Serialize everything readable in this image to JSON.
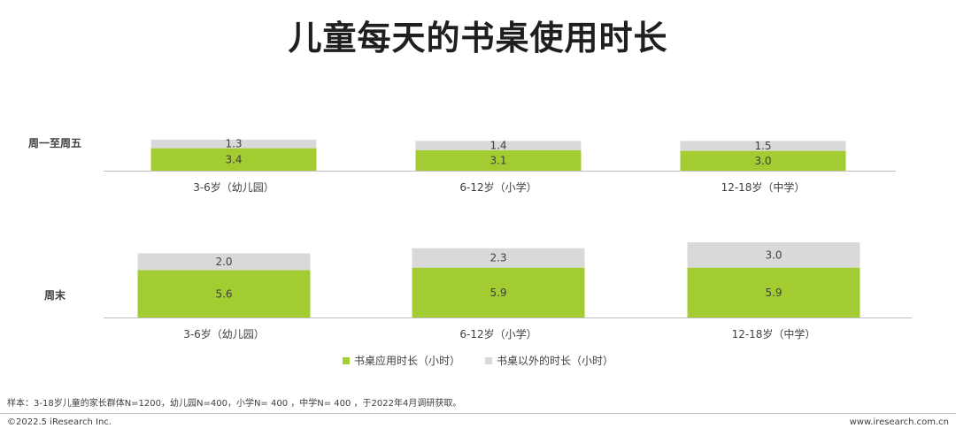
{
  "title": "儿童每天的书桌使用时长",
  "colors": {
    "desk": "#a3cc33",
    "other": "#d9d9d9",
    "axis": "#bfbfbf"
  },
  "chart_data": [
    {
      "type": "bar",
      "stacked": true,
      "panel_label": "周一至周五",
      "categories": [
        "3-6岁（幼儿园）",
        "6-12岁（小学）",
        "12-18岁（中学）"
      ],
      "series": [
        {
          "name": "书桌应用时长（小时）",
          "values": [
            3.4,
            3.1,
            3.0
          ]
        },
        {
          "name": "书桌以外的时长（小时）",
          "values": [
            1.3,
            1.4,
            1.5
          ]
        }
      ],
      "value_labels": {
        "desk": [
          "3.4",
          "3.1",
          "3.0"
        ],
        "other": [
          "1.3",
          "1.4",
          "1.5"
        ]
      },
      "ylim": [
        0,
        8.7
      ]
    },
    {
      "type": "bar",
      "stacked": true,
      "panel_label": "周末",
      "categories": [
        "3-6岁（幼儿园）",
        "6-12岁（小学）",
        "12-18岁（中学）"
      ],
      "series": [
        {
          "name": "书桌应用时长（小时）",
          "values": [
            5.6,
            5.9,
            5.9
          ]
        },
        {
          "name": "书桌以外的时长（小时）",
          "values": [
            2.0,
            2.3,
            3.0
          ]
        }
      ],
      "value_labels": {
        "desk": [
          "5.6",
          "5.9",
          "5.9"
        ],
        "other": [
          "2.0",
          "2.3",
          "3.0"
        ]
      },
      "ylim": [
        0,
        8.9
      ]
    }
  ],
  "legend": [
    {
      "label": "书桌应用时长（小时）",
      "color": "#a3cc33"
    },
    {
      "label": "书桌以外的时长（小时）",
      "color": "#d9d9d9"
    }
  ],
  "note": "样本：3-18岁儿童的家长群体N=1200，幼儿园N=400，小学N= 400 ，中学N= 400 ，于2022年4月调研获取。",
  "copyright": "©2022.5 iResearch Inc.",
  "site": "www.iresearch.com.cn"
}
